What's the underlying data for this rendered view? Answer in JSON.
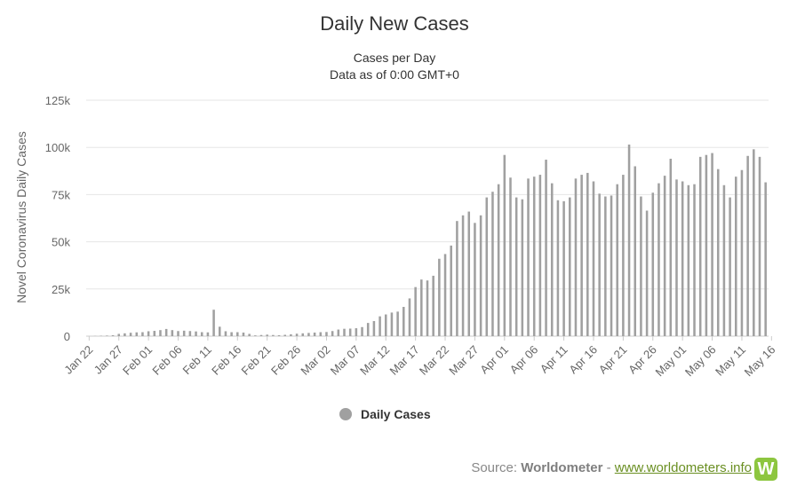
{
  "header": {
    "title": "Daily New Cases",
    "subtitle_line1": "Cases per Day",
    "subtitle_line2": "Data as of 0:00 GMT+0"
  },
  "footer": {
    "source_prefix": "Source: ",
    "source_name": "Worldometer",
    "separator": " - ",
    "link_text": "www.worldometers.info",
    "logo_letter": "W"
  },
  "colors": {
    "bar": "#a0a0a0",
    "grid": "#e6e6e6",
    "axis_text": "#666666",
    "logo": "#8dc63f"
  },
  "chart_data": {
    "type": "bar",
    "title": "Daily New Cases",
    "subtitle": "Cases per Day\nData as of 0:00 GMT+0",
    "ylabel": "Novel Coronavirus Daily Cases",
    "xlabel": "",
    "ylim": [
      0,
      125000
    ],
    "yticks": [
      0,
      25000,
      50000,
      75000,
      100000,
      125000
    ],
    "ytick_labels": [
      "0",
      "25k",
      "50k",
      "75k",
      "100k",
      "125k"
    ],
    "grid": true,
    "legend": {
      "position": "bottom-center",
      "entries": [
        "Daily Cases"
      ]
    },
    "xtick_labels": [
      "Jan 22",
      "Jan 27",
      "Feb 01",
      "Feb 06",
      "Feb 11",
      "Feb 16",
      "Feb 21",
      "Feb 26",
      "Mar 02",
      "Mar 07",
      "Mar 12",
      "Mar 17",
      "Mar 22",
      "Mar 27",
      "Apr 01",
      "Apr 06",
      "Apr 11",
      "Apr 16",
      "Apr 21",
      "Apr 26",
      "May 01",
      "May 06",
      "May 11",
      "May 16"
    ],
    "xtick_every": 5,
    "start_date": "Jan 22",
    "series": [
      {
        "name": "Daily Cases",
        "values": [
          0,
          100,
          200,
          300,
          500,
          1200,
          1500,
          1800,
          2000,
          2100,
          2600,
          2800,
          3200,
          3800,
          3200,
          2700,
          2900,
          2700,
          2500,
          2100,
          2000,
          14000,
          5000,
          2600,
          2100,
          2100,
          1900,
          1200,
          400,
          600,
          800,
          600,
          500,
          700,
          1000,
          1300,
          1500,
          1700,
          1900,
          2100,
          2200,
          2700,
          3500,
          3900,
          4000,
          4200,
          4800,
          7000,
          8000,
          10500,
          11500,
          12500,
          13000,
          15500,
          20000,
          26000,
          30000,
          29500,
          32000,
          41000,
          43500,
          48000,
          61000,
          64000,
          66000,
          60000,
          64000,
          73500,
          76500,
          80500,
          96000,
          84000,
          73500,
          72500,
          83500,
          84500,
          85500,
          93500,
          81000,
          72000,
          71500,
          73500,
          83500,
          85500,
          86500,
          82000,
          75500,
          74000,
          74500,
          80500,
          85500,
          101500,
          90000,
          74000,
          66500,
          76000,
          81000,
          85000,
          94000,
          83000,
          82000,
          80000,
          80500,
          95000,
          96000,
          97000,
          88500,
          80000,
          73500,
          84500,
          88000,
          95500,
          99000,
          95000,
          81500
        ]
      }
    ]
  }
}
